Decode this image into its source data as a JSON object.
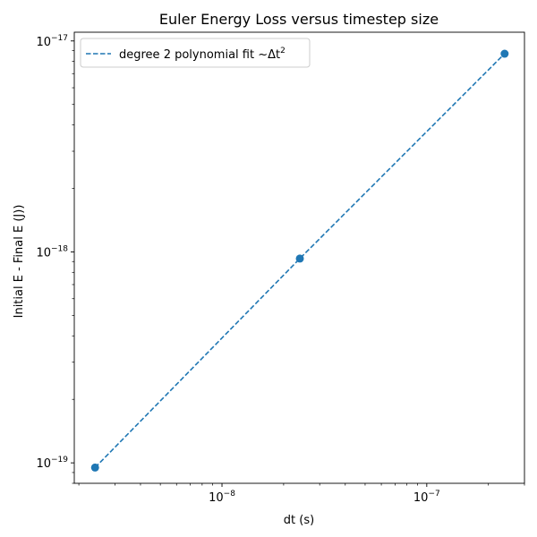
{
  "chart_data": {
    "type": "scatter",
    "title": "Euler Energy Loss versus timestep size",
    "xlabel": "dt (s)",
    "ylabel": "Initial E - Final E (J))",
    "xscale": "log",
    "yscale": "log",
    "xlim": [
      1.9e-09,
      3e-07
    ],
    "ylim": [
      8e-20,
      1.1e-17
    ],
    "grid": false,
    "legend_position": "top-left",
    "x_ticks": [
      {
        "value": 1e-08,
        "base": "10",
        "exp": "−8"
      },
      {
        "value": 1e-07,
        "base": "10",
        "exp": "−7"
      }
    ],
    "y_ticks": [
      {
        "value": 1e-19,
        "base": "10",
        "exp": "−19"
      },
      {
        "value": 1e-18,
        "base": "10",
        "exp": "−18"
      },
      {
        "value": 1e-17,
        "base": "10",
        "exp": "−17"
      }
    ],
    "series": [
      {
        "kind": "points",
        "color": "#1f77b4",
        "x": [
          2.4e-09,
          2.4e-08,
          2.4e-07
        ],
        "y": [
          9.5e-20,
          9.3e-19,
          8.7e-18
        ]
      },
      {
        "kind": "line",
        "name": "degree 2 polynomial fit",
        "name_math": "~Δt",
        "name_sup": "2",
        "style": "dashed",
        "color": "#1f77b4",
        "x": [
          2.4e-09,
          2.4e-08,
          2.4e-07
        ],
        "y": [
          9.5e-20,
          9.3e-19,
          8.7e-18
        ]
      }
    ]
  }
}
